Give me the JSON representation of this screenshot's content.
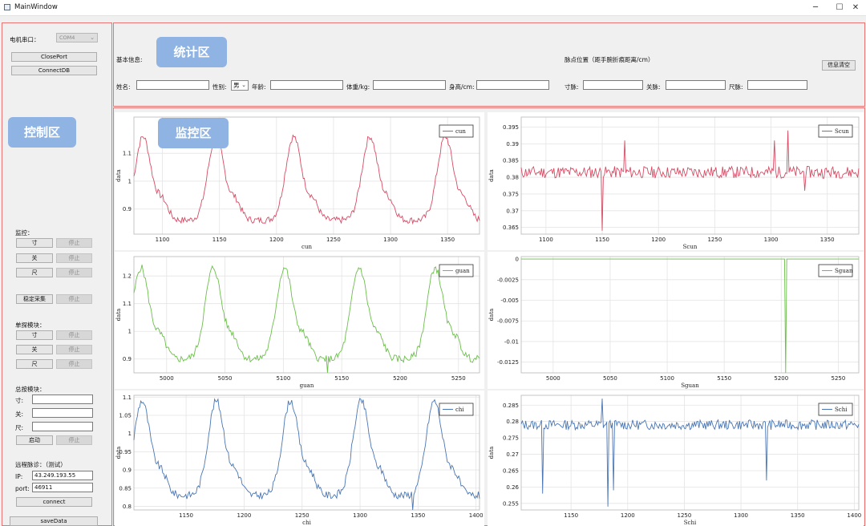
{
  "window": {
    "title": "MainWindow",
    "minimize": "─",
    "maximize": "☐",
    "close": "✕"
  },
  "control": {
    "serial_label": "电机串口：",
    "serial_value": "COM4",
    "close_port": "ClosePort",
    "connect_db": "ConnectDB",
    "monitor_label": "监控：",
    "cun": "寸",
    "guan": "关",
    "chi": "尺",
    "stop": "停止",
    "stable_collect": "稳定采集",
    "single_probe_label": "单探模块：",
    "total_probe_label": "总按模块：",
    "cun_colon": "寸:",
    "guan_colon": "关:",
    "chi_colon": "尺:",
    "start": "启动",
    "remote_label": "远程脉诊：（测试）",
    "ip_label": "IP:",
    "ip_value": "43.249.193.55",
    "port_label": "port:",
    "port_value": "46911",
    "connect": "connect",
    "save_data": "saveData"
  },
  "stats": {
    "basic_info": "基本信息:",
    "pulse_position": "脉点位置（距手腕折痕距离/cm）",
    "clear_info": "信息清空",
    "name_label": "姓名:",
    "gender_label": "性别:",
    "gender_value": "男",
    "age_label": "年龄:",
    "weight_label": "体重/kg:",
    "height_label": "身高/cm:",
    "cun_dist_label": "寸脉:",
    "guan_dist_label": "关脉:",
    "chi_dist_label": "尺脉:"
  },
  "overlays": {
    "control": "控制区",
    "stats": "统计区",
    "monitor": "监控区"
  },
  "colors": {
    "red": "#d84a63",
    "green": "#6cbf4b",
    "blue": "#4a76b4",
    "panel_border": "#e87474",
    "tag_bg": "#8fb3e2"
  },
  "chart_data": [
    {
      "type": "line",
      "xlabel": "cun",
      "ylabel": "data",
      "legend": "cun",
      "color": "#d84a63",
      "xlim": [
        1075,
        1378
      ],
      "ylim": [
        0.81,
        1.23
      ],
      "xticks": [
        1100,
        1150,
        1200,
        1250,
        1300,
        1350
      ],
      "yticks": [
        0.9,
        1.0,
        1.1
      ],
      "ytick_labels": [
        "0.9",
        "1",
        "1.1"
      ],
      "peaks": [
        1083,
        1147,
        1215,
        1282,
        1348
      ],
      "base": 0.86,
      "amp": 0.3,
      "seed": 7,
      "spikes": []
    },
    {
      "type": "line",
      "xlabel": "Scun",
      "ylabel": "data",
      "legend": "Scun",
      "color": "#d84a63",
      "xlim": [
        1078,
        1378
      ],
      "ylim": [
        0.363,
        0.398
      ],
      "xticks": [
        1100,
        1150,
        1200,
        1250,
        1300,
        1350
      ],
      "yticks": [
        0.365,
        0.37,
        0.375,
        0.38,
        0.385,
        0.39,
        0.395
      ],
      "ytick_labels": [
        "0.365",
        "0.37",
        "0.375",
        "0.38",
        "0.385",
        "0.39",
        "0.395"
      ],
      "base": 0.3815,
      "noise": 0.0018,
      "seed": 11,
      "spikes": [
        [
          1150,
          0.364
        ],
        [
          1170,
          0.391
        ],
        [
          1315,
          0.394
        ],
        [
          1330,
          0.376
        ],
        [
          1303,
          0.391
        ]
      ]
    },
    {
      "type": "line",
      "xlabel": "guan",
      "ylabel": "data",
      "legend": "guan",
      "color": "#6cbf4b",
      "xlim": [
        4972,
        5268
      ],
      "ylim": [
        0.85,
        1.27
      ],
      "xticks": [
        5000,
        5050,
        5100,
        5150,
        5200,
        5250
      ],
      "yticks": [
        0.9,
        1.0,
        1.1,
        1.2
      ],
      "ytick_labels": [
        "0.9",
        "1",
        "1.1",
        "1.2"
      ],
      "peaks": [
        4978,
        5040,
        5101,
        5165,
        5230
      ],
      "base": 0.9,
      "amp": 0.33,
      "seed": 5,
      "spikes": [
        [
          5138,
          0.84
        ]
      ]
    },
    {
      "type": "line",
      "xlabel": "Sguan",
      "ylabel": "data",
      "legend": "Sguan",
      "color": "#6cbf4b",
      "xlim": [
        4972,
        5268
      ],
      "ylim": [
        -0.0138,
        0.0003
      ],
      "xticks": [
        5000,
        5050,
        5100,
        5150,
        5200,
        5250
      ],
      "yticks": [
        0,
        -0.0025,
        -0.005,
        -0.0075,
        -0.01,
        -0.0125
      ],
      "ytick_labels": [
        "0",
        "-0.0025",
        "-0.005",
        "-0.0075",
        "-0.01",
        "-0.0125"
      ],
      "base": 0,
      "seed": 1,
      "spikes": [
        [
          5204,
          -0.0138
        ]
      ],
      "flat": true
    },
    {
      "type": "line",
      "xlabel": "chi",
      "ylabel": "data",
      "legend": "chi",
      "color": "#4a76b4",
      "xlim": [
        1105,
        1403
      ],
      "ylim": [
        0.79,
        1.105
      ],
      "xticks": [
        1150,
        1200,
        1250,
        1300,
        1350,
        1400
      ],
      "yticks": [
        0.8,
        0.85,
        0.9,
        0.95,
        1.0,
        1.05,
        1.1
      ],
      "ytick_labels": [
        "0.8",
        "0.85",
        "0.9",
        "0.95",
        "1",
        "1.05",
        "1.1"
      ],
      "peaks": [
        1112,
        1176,
        1240,
        1301,
        1364
      ],
      "base": 0.83,
      "amp": 0.26,
      "seed": 9,
      "spikes": [
        [
          1345,
          0.79
        ]
      ]
    },
    {
      "type": "line",
      "xlabel": "Schi",
      "ylabel": "data",
      "legend": "Schi",
      "color": "#4a76b4",
      "xlim": [
        1106,
        1404
      ],
      "ylim": [
        0.253,
        0.288
      ],
      "xticks": [
        1150,
        1200,
        1250,
        1300,
        1350,
        1400
      ],
      "yticks": [
        0.255,
        0.26,
        0.265,
        0.27,
        0.275,
        0.28,
        0.285
      ],
      "ytick_labels": [
        "0.255",
        "0.26",
        "0.265",
        "0.27",
        "0.275",
        "0.28",
        "0.285"
      ],
      "base": 0.279,
      "noise": 0.0015,
      "seed": 13,
      "spikes": [
        [
          1125,
          0.258
        ],
        [
          1182,
          0.254
        ],
        [
          1187,
          0.259
        ],
        [
          1178,
          0.287
        ],
        [
          1323,
          0.262
        ]
      ]
    }
  ]
}
